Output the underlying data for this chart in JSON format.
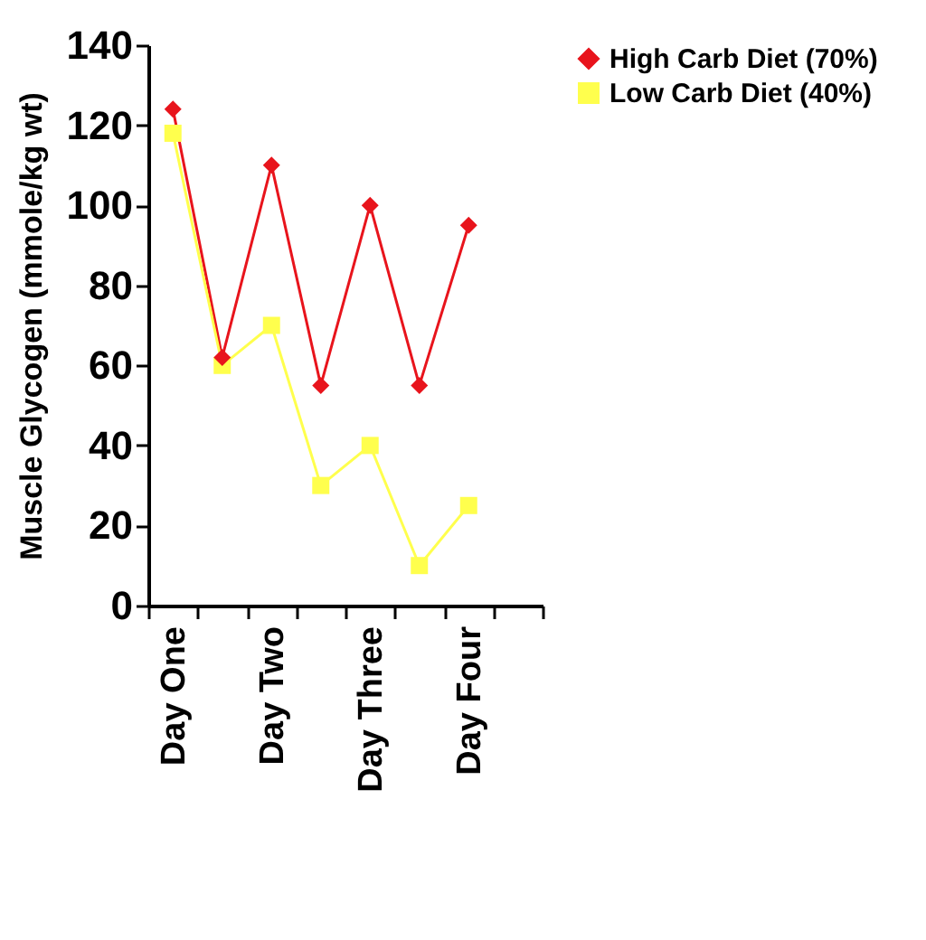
{
  "chart_data": {
    "type": "line",
    "ylabel": "Muscle Glycogen (mmole/kg wt)",
    "categories": [
      "Day One",
      null,
      "Day Two",
      null,
      "Day Three",
      null,
      "Day Four",
      null
    ],
    "series": [
      {
        "name": "High Carb Diet (70%)",
        "color": "#e8141c",
        "marker": "diamond",
        "values": [
          124,
          62,
          110,
          55,
          100,
          55,
          95,
          null
        ]
      },
      {
        "name": "Low Carb Diet (40%)",
        "color": "#ffff4d",
        "marker": "square",
        "values": [
          118,
          60,
          70,
          30,
          40,
          10,
          25,
          null
        ]
      }
    ],
    "ylim": [
      0,
      140
    ],
    "yticks": [
      0,
      20,
      40,
      60,
      80,
      100,
      120,
      140
    ],
    "grid": false,
    "legend": "right"
  }
}
